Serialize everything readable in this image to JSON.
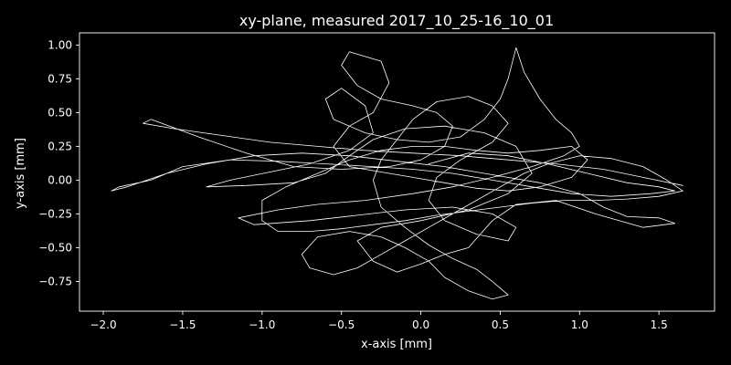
{
  "chart_data": {
    "type": "line",
    "title": "xy-plane, measured 2017_10_25-16_10_01",
    "xlabel": "x-axis [mm]",
    "ylabel": "y-axis [mm]",
    "xlim": [
      -2.15,
      1.85
    ],
    "ylim": [
      -0.97,
      1.09
    ],
    "xticks": [
      -2.0,
      -1.5,
      -1.0,
      -0.5,
      0.0,
      0.5,
      1.0,
      1.5
    ],
    "xtick_labels": [
      "−2.0",
      "−1.5",
      "−1.0",
      "−0.5",
      "0.0",
      "0.5",
      "1.0",
      "1.5"
    ],
    "yticks": [
      -0.75,
      -0.5,
      -0.25,
      0.0,
      0.25,
      0.5,
      0.75,
      1.0
    ],
    "ytick_labels": [
      "−0.75",
      "−0.50",
      "−0.25",
      "0.00",
      "0.25",
      "0.50",
      "0.75",
      "1.00"
    ],
    "grid": false,
    "colors": {
      "background": "#000000",
      "foreground": "#ffffff",
      "trace": "#ffffff"
    },
    "series": [
      {
        "points": [
          [
            0.05,
            0.12
          ],
          [
            0.3,
            0.2
          ],
          [
            0.55,
            0.18
          ],
          [
            0.8,
            0.12
          ],
          [
            1.05,
            0.05
          ],
          [
            1.3,
            -0.02
          ],
          [
            1.5,
            -0.05
          ],
          [
            1.6,
            -0.08
          ],
          [
            1.45,
            -0.1
          ],
          [
            1.2,
            -0.12
          ],
          [
            0.95,
            -0.1
          ],
          [
            0.7,
            -0.05
          ],
          [
            0.45,
            0.0
          ],
          [
            0.2,
            0.05
          ],
          [
            -0.05,
            0.08
          ],
          [
            -0.3,
            0.1
          ],
          [
            -0.6,
            0.12
          ],
          [
            -0.9,
            0.14
          ],
          [
            -1.2,
            0.15
          ],
          [
            -1.5,
            0.1
          ],
          [
            -1.7,
            0.0
          ],
          [
            -1.9,
            -0.05
          ],
          [
            -1.95,
            -0.08
          ],
          [
            -1.85,
            -0.05
          ],
          [
            -1.6,
            0.05
          ],
          [
            -1.35,
            0.12
          ],
          [
            -1.05,
            0.18
          ],
          [
            -0.75,
            0.2
          ],
          [
            -0.45,
            0.18
          ],
          [
            -0.15,
            0.14
          ],
          [
            0.15,
            0.1
          ],
          [
            0.45,
            0.04
          ],
          [
            0.75,
            -0.02
          ],
          [
            1.0,
            -0.1
          ],
          [
            1.15,
            -0.2
          ],
          [
            1.3,
            -0.27
          ],
          [
            1.5,
            -0.28
          ],
          [
            1.6,
            -0.32
          ],
          [
            1.4,
            -0.35
          ],
          [
            1.1,
            -0.25
          ],
          [
            0.85,
            -0.15
          ],
          [
            0.6,
            -0.18
          ],
          [
            0.45,
            -0.3
          ],
          [
            0.3,
            -0.5
          ],
          [
            0.15,
            -0.55
          ],
          [
            0.0,
            -0.62
          ],
          [
            -0.15,
            -0.68
          ],
          [
            -0.3,
            -0.6
          ],
          [
            -0.4,
            -0.45
          ],
          [
            -0.25,
            -0.35
          ],
          [
            0.0,
            -0.3
          ],
          [
            0.3,
            -0.22
          ],
          [
            0.55,
            -0.1
          ],
          [
            0.7,
            0.05
          ],
          [
            0.6,
            0.25
          ],
          [
            0.4,
            0.35
          ],
          [
            0.15,
            0.4
          ],
          [
            -0.1,
            0.38
          ],
          [
            -0.3,
            0.3
          ],
          [
            -0.45,
            0.18
          ],
          [
            -0.6,
            0.05
          ],
          [
            -0.8,
            -0.02
          ],
          [
            -1.1,
            -0.04
          ],
          [
            -1.35,
            -0.05
          ],
          [
            -1.2,
            0.0
          ],
          [
            -0.95,
            0.06
          ],
          [
            -0.7,
            0.12
          ],
          [
            -0.45,
            0.22
          ],
          [
            -0.3,
            0.35
          ],
          [
            -0.35,
            0.55
          ],
          [
            -0.5,
            0.68
          ],
          [
            -0.6,
            0.6
          ],
          [
            -0.55,
            0.45
          ],
          [
            -0.35,
            0.35
          ],
          [
            -0.15,
            0.3
          ],
          [
            0.05,
            0.28
          ],
          [
            0.25,
            0.32
          ],
          [
            0.4,
            0.45
          ],
          [
            0.5,
            0.6
          ],
          [
            0.55,
            0.75
          ],
          [
            0.6,
            0.98
          ],
          [
            0.65,
            0.8
          ],
          [
            0.75,
            0.6
          ],
          [
            0.85,
            0.45
          ],
          [
            0.95,
            0.35
          ],
          [
            1.0,
            0.25
          ],
          [
            0.9,
            0.18
          ],
          [
            0.7,
            0.1
          ],
          [
            0.45,
            0.02
          ],
          [
            0.2,
            -0.05
          ],
          [
            -0.05,
            -0.1
          ],
          [
            -0.35,
            -0.15
          ],
          [
            -0.65,
            -0.18
          ],
          [
            -0.9,
            -0.22
          ],
          [
            -1.15,
            -0.28
          ],
          [
            -1.05,
            -0.33
          ],
          [
            -0.7,
            -0.3
          ],
          [
            -0.4,
            -0.26
          ],
          [
            -0.1,
            -0.22
          ],
          [
            0.2,
            -0.2
          ],
          [
            0.45,
            -0.25
          ],
          [
            0.6,
            -0.35
          ],
          [
            0.55,
            -0.45
          ],
          [
            0.35,
            -0.4
          ],
          [
            0.15,
            -0.3
          ],
          [
            0.05,
            -0.15
          ],
          [
            0.1,
            0.02
          ],
          [
            0.25,
            0.15
          ],
          [
            0.45,
            0.28
          ],
          [
            0.55,
            0.42
          ],
          [
            0.45,
            0.55
          ],
          [
            0.3,
            0.62
          ],
          [
            0.1,
            0.58
          ],
          [
            -0.05,
            0.45
          ],
          [
            -0.15,
            0.3
          ],
          [
            -0.25,
            0.15
          ],
          [
            -0.3,
            0.0
          ],
          [
            -0.25,
            -0.2
          ],
          [
            -0.1,
            -0.35
          ],
          [
            0.05,
            -0.48
          ],
          [
            0.2,
            -0.58
          ],
          [
            0.35,
            -0.66
          ],
          [
            0.45,
            -0.75
          ],
          [
            0.55,
            -0.85
          ],
          [
            0.45,
            -0.88
          ],
          [
            0.3,
            -0.82
          ],
          [
            0.15,
            -0.72
          ],
          [
            0.05,
            -0.6
          ],
          [
            -0.1,
            -0.5
          ],
          [
            -0.25,
            -0.42
          ],
          [
            -0.45,
            -0.38
          ],
          [
            -0.65,
            -0.42
          ],
          [
            -0.75,
            -0.55
          ],
          [
            -0.7,
            -0.65
          ],
          [
            -0.55,
            -0.7
          ],
          [
            -0.4,
            -0.65
          ],
          [
            -0.25,
            -0.55
          ],
          [
            -0.1,
            -0.45
          ],
          [
            0.05,
            -0.35
          ],
          [
            0.2,
            -0.25
          ],
          [
            0.35,
            -0.15
          ],
          [
            0.5,
            -0.05
          ],
          [
            0.65,
            0.05
          ],
          [
            0.8,
            0.12
          ],
          [
            1.0,
            0.18
          ],
          [
            1.2,
            0.16
          ],
          [
            1.4,
            0.1
          ],
          [
            1.55,
            0.0
          ],
          [
            1.65,
            -0.08
          ],
          [
            1.5,
            -0.12
          ],
          [
            1.3,
            -0.14
          ],
          [
            1.1,
            -0.15
          ],
          [
            0.9,
            -0.15
          ],
          [
            0.7,
            -0.17
          ],
          [
            0.5,
            -0.2
          ],
          [
            0.3,
            -0.23
          ],
          [
            0.1,
            -0.26
          ],
          [
            -0.1,
            -0.3
          ],
          [
            -0.3,
            -0.33
          ],
          [
            -0.5,
            -0.36
          ],
          [
            -0.7,
            -0.38
          ],
          [
            -0.9,
            -0.38
          ],
          [
            -1.0,
            -0.3
          ],
          [
            -1.0,
            -0.15
          ],
          [
            -0.85,
            -0.05
          ],
          [
            -0.65,
            0.05
          ],
          [
            -0.45,
            0.15
          ],
          [
            -0.25,
            0.22
          ],
          [
            -0.05,
            0.25
          ],
          [
            0.15,
            0.25
          ],
          [
            0.35,
            0.22
          ],
          [
            0.55,
            0.2
          ],
          [
            0.75,
            0.22
          ],
          [
            0.95,
            0.25
          ],
          [
            1.05,
            0.15
          ],
          [
            0.95,
            0.02
          ],
          [
            0.75,
            -0.05
          ],
          [
            0.55,
            -0.08
          ],
          [
            0.35,
            -0.06
          ],
          [
            0.15,
            -0.02
          ],
          [
            -0.05,
            0.02
          ],
          [
            -0.25,
            0.06
          ],
          [
            -0.45,
            0.1
          ],
          [
            -0.55,
            0.25
          ],
          [
            -0.45,
            0.4
          ],
          [
            -0.3,
            0.5
          ],
          [
            -0.2,
            0.72
          ],
          [
            -0.25,
            0.88
          ],
          [
            -0.45,
            0.95
          ],
          [
            -0.5,
            0.85
          ],
          [
            -0.4,
            0.7
          ],
          [
            -0.25,
            0.6
          ],
          [
            -0.05,
            0.55
          ],
          [
            0.1,
            0.5
          ],
          [
            0.2,
            0.4
          ],
          [
            0.15,
            0.25
          ],
          [
            0.0,
            0.15
          ],
          [
            -0.2,
            0.1
          ],
          [
            -0.5,
            0.08
          ],
          [
            -0.8,
            0.1
          ],
          [
            -1.1,
            0.2
          ],
          [
            -1.4,
            0.32
          ],
          [
            -1.7,
            0.45
          ],
          [
            -1.75,
            0.42
          ],
          [
            -1.55,
            0.38
          ],
          [
            -1.25,
            0.33
          ],
          [
            -0.95,
            0.28
          ],
          [
            -0.65,
            0.25
          ],
          [
            -0.35,
            0.22
          ],
          [
            -0.05,
            0.2
          ],
          [
            0.25,
            0.18
          ],
          [
            0.55,
            0.15
          ],
          [
            0.85,
            0.12
          ],
          [
            1.15,
            0.08
          ],
          [
            1.4,
            0.02
          ],
          [
            1.65,
            -0.04
          ]
        ]
      }
    ]
  }
}
